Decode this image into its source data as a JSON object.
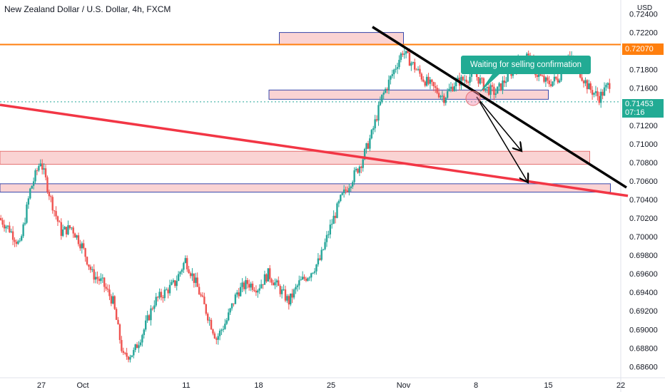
{
  "header": {
    "title": "New Zealand Dollar / U.S. Dollar, 4h, FXCM"
  },
  "annotation": {
    "callout_text": "Waiting for selling confirmation"
  },
  "price_tags": {
    "resistance_price": "0.72070",
    "current_price": "0.71453",
    "countdown": "07:16",
    "currency": "USD"
  },
  "colors": {
    "up": "#26a69a",
    "down": "#ef5350",
    "resistance_line": "#ff7f0e",
    "trendline_red": "#f23645",
    "trendline_black": "#000000",
    "zone_fill": "#f9c8c8",
    "zone_border": "#3949ab",
    "callout": "#22ab94"
  },
  "chart_data": {
    "type": "candlestick",
    "title": "New Zealand Dollar / U.S. Dollar, 4h, FXCM",
    "x_tick_labels": [
      "27",
      "Oct",
      "11",
      "18",
      "25",
      "Nov",
      "8",
      "15",
      "22"
    ],
    "y_tick_labels": [
      "0.72400",
      "0.72200",
      "0.72000",
      "0.71800",
      "0.71600",
      "0.71400",
      "0.71200",
      "0.71000",
      "0.70800",
      "0.70600",
      "0.70400",
      "0.70200",
      "0.70000",
      "0.69800",
      "0.69600",
      "0.69400",
      "0.69200",
      "0.69000",
      "0.68800",
      "0.68600"
    ],
    "ylim": [
      0.6848,
      0.7255
    ],
    "xlim": [
      "2021-09-23",
      "2021-11-22"
    ],
    "close_path": [
      [
        "2021-09-23",
        0.702
      ],
      [
        "2021-09-24",
        0.7008
      ],
      [
        "2021-09-25",
        0.699
      ],
      [
        "2021-09-26",
        0.705
      ],
      [
        "2021-09-27",
        0.7082
      ],
      [
        "2021-09-28",
        0.704
      ],
      [
        "2021-09-29",
        0.7005
      ],
      [
        "2021-09-30",
        0.701
      ],
      [
        "2021-10-01",
        0.699
      ],
      [
        "2021-10-02",
        0.696
      ],
      [
        "2021-10-03",
        0.695
      ],
      [
        "2021-10-04",
        0.693
      ],
      [
        "2021-10-05",
        0.687
      ],
      [
        "2021-10-06",
        0.6875
      ],
      [
        "2021-10-07",
        0.69
      ],
      [
        "2021-10-08",
        0.693
      ],
      [
        "2021-10-09",
        0.694
      ],
      [
        "2021-10-10",
        0.695
      ],
      [
        "2021-10-11",
        0.6975
      ],
      [
        "2021-10-12",
        0.695
      ],
      [
        "2021-10-13",
        0.692
      ],
      [
        "2021-10-14",
        0.689
      ],
      [
        "2021-10-15",
        0.691
      ],
      [
        "2021-10-16",
        0.694
      ],
      [
        "2021-10-17",
        0.695
      ],
      [
        "2021-10-18",
        0.6945
      ],
      [
        "2021-10-19",
        0.696
      ],
      [
        "2021-10-20",
        0.6945
      ],
      [
        "2021-10-21",
        0.693
      ],
      [
        "2021-10-22",
        0.695
      ],
      [
        "2021-10-23",
        0.696
      ],
      [
        "2021-10-24",
        0.6975
      ],
      [
        "2021-10-25",
        0.701
      ],
      [
        "2021-10-26",
        0.704
      ],
      [
        "2021-10-27",
        0.706
      ],
      [
        "2021-10-28",
        0.708
      ],
      [
        "2021-10-29",
        0.711
      ],
      [
        "2021-10-30",
        0.715
      ],
      [
        "2021-10-31",
        0.7175
      ],
      [
        "2021-11-01",
        0.72
      ],
      [
        "2021-11-02",
        0.7185
      ],
      [
        "2021-11-03",
        0.717
      ],
      [
        "2021-11-04",
        0.716
      ],
      [
        "2021-11-05",
        0.715
      ],
      [
        "2021-11-06",
        0.7165
      ],
      [
        "2021-11-07",
        0.717
      ],
      [
        "2021-11-08",
        0.7175
      ],
      [
        "2021-11-09",
        0.716
      ],
      [
        "2021-11-10",
        0.7155
      ],
      [
        "2021-11-11",
        0.717
      ],
      [
        "2021-11-12",
        0.7185
      ],
      [
        "2021-11-13",
        0.7195
      ],
      [
        "2021-11-14",
        0.7175
      ],
      [
        "2021-11-15",
        0.7165
      ],
      [
        "2021-11-16",
        0.717
      ],
      [
        "2021-11-17",
        0.7195
      ],
      [
        "2021-11-18",
        0.718
      ],
      [
        "2021-11-19",
        0.716
      ],
      [
        "2021-11-20",
        0.715
      ],
      [
        "2021-11-21",
        0.7165
      ]
    ],
    "x_tick_dates": [
      "2021-09-27",
      "2021-10-01",
      "2021-10-11",
      "2021-10-18",
      "2021-10-25",
      "2021-11-01",
      "2021-11-08",
      "2021-11-15",
      "2021-11-22"
    ],
    "horizontal_lines": [
      {
        "name": "resistance",
        "price": 0.7207
      },
      {
        "name": "current-price",
        "price": 0.71453
      }
    ],
    "zones": [
      {
        "name": "top-zone",
        "x0": "2021-10-20",
        "x1": "2021-11-01",
        "y0": 0.7207,
        "y1": 0.722
      },
      {
        "name": "mid-zone",
        "x0": "2021-10-19",
        "x1": "2021-11-15",
        "y0": 0.7148,
        "y1": 0.7158
      },
      {
        "name": "low-zone-1",
        "x0": "2021-09-23",
        "x1": "2021-11-19",
        "y0": 0.7078,
        "y1": 0.7092
      },
      {
        "name": "low-zone-2",
        "x0": "2021-09-23",
        "x1": "2021-11-21",
        "y0": 0.7048,
        "y1": 0.7057
      }
    ],
    "trendlines": [
      {
        "name": "red-trendline",
        "from": [
          "2021-09-23",
          0.7142
        ],
        "to": [
          "2021-11-22",
          0.7044
        ]
      },
      {
        "name": "black-trendline",
        "from": [
          "2021-10-29",
          0.7226
        ],
        "to": [
          "2021-11-22",
          0.7053
        ]
      }
    ],
    "arrows": [
      {
        "name": "arrow-short",
        "from": [
          "2021-11-08",
          0.7152
        ],
        "to": [
          "2021-11-11",
          0.7095
        ]
      },
      {
        "name": "arrow-long",
        "from": [
          "2021-11-08",
          0.7152
        ],
        "to": [
          "2021-11-11",
          0.7058
        ]
      }
    ],
    "marker": {
      "name": "highlight-circle",
      "at": [
        "2021-11-08",
        0.7154
      ]
    }
  }
}
